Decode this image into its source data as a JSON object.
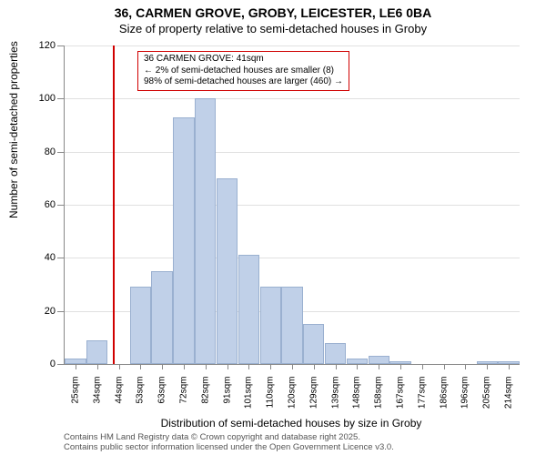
{
  "chart": {
    "type": "histogram",
    "title": "36, CARMEN GROVE, GROBY, LEICESTER, LE6 0BA",
    "subtitle": "Size of property relative to semi-detached houses in Groby",
    "ylabel": "Number of semi-detached properties",
    "xlabel": "Distribution of semi-detached houses by size in Groby",
    "background_color": "#ffffff",
    "grid_color": "#e0e0e0",
    "axis_color": "#888888",
    "bar_fill": "#c0d0e8",
    "bar_border": "#9ab0d0",
    "reference_line_color": "#d00000",
    "reference_x_value": 41,
    "title_fontsize": 14,
    "subtitle_fontsize": 13,
    "label_fontsize": 12,
    "tick_fontsize": 11,
    "ylim": [
      0,
      120
    ],
    "ytick_step": 20,
    "yticks": [
      0,
      20,
      40,
      60,
      80,
      100,
      120
    ],
    "xlim": [
      20,
      220
    ],
    "xticks": [
      25,
      34,
      44,
      53,
      63,
      72,
      82,
      91,
      101,
      110,
      120,
      129,
      139,
      148,
      158,
      167,
      177,
      186,
      196,
      205,
      214
    ],
    "xtick_unit": "sqm",
    "bins": [
      {
        "x": 25,
        "count": 2
      },
      {
        "x": 34,
        "count": 9
      },
      {
        "x": 44,
        "count": 0
      },
      {
        "x": 53,
        "count": 29
      },
      {
        "x": 63,
        "count": 35
      },
      {
        "x": 72,
        "count": 93
      },
      {
        "x": 82,
        "count": 100
      },
      {
        "x": 91,
        "count": 70
      },
      {
        "x": 101,
        "count": 41
      },
      {
        "x": 110,
        "count": 29
      },
      {
        "x": 120,
        "count": 29
      },
      {
        "x": 129,
        "count": 15
      },
      {
        "x": 139,
        "count": 8
      },
      {
        "x": 148,
        "count": 2
      },
      {
        "x": 158,
        "count": 3
      },
      {
        "x": 167,
        "count": 1
      },
      {
        "x": 177,
        "count": 0
      },
      {
        "x": 186,
        "count": 0
      },
      {
        "x": 196,
        "count": 0
      },
      {
        "x": 205,
        "count": 1
      },
      {
        "x": 214,
        "count": 1
      }
    ],
    "annotation": {
      "line1": "36 CARMEN GROVE: 41sqm",
      "line2": "← 2% of semi-detached houses are smaller (8)",
      "line3": "98% of semi-detached houses are larger (460) →",
      "border_color": "#d00000",
      "fontsize": 10
    },
    "footnote_line1": "Contains HM Land Registry data © Crown copyright and database right 2025.",
    "footnote_line2": "Contains public sector information licensed under the Open Government Licence v3.0."
  }
}
